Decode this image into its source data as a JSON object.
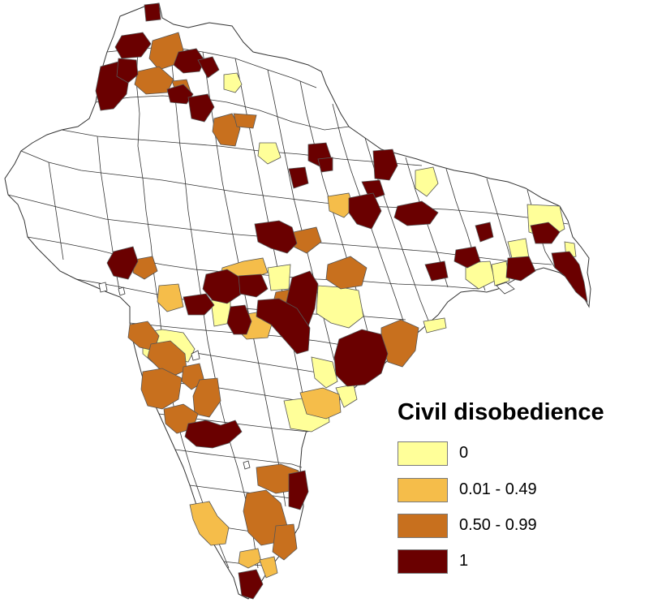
{
  "legend": {
    "title": "Civil disobedience",
    "items": [
      {
        "label": "0",
        "color": "#ffff99"
      },
      {
        "label": "0.01 - 0.49",
        "color": "#f5bd4a"
      },
      {
        "label": "0.50 - 0.99",
        "color": "#c8701e"
      },
      {
        "label": "1",
        "color": "#6a0000"
      }
    ]
  },
  "colors": {
    "boundary": "#333333",
    "land_blank": "#ffffff",
    "background": "#ffffff"
  }
}
